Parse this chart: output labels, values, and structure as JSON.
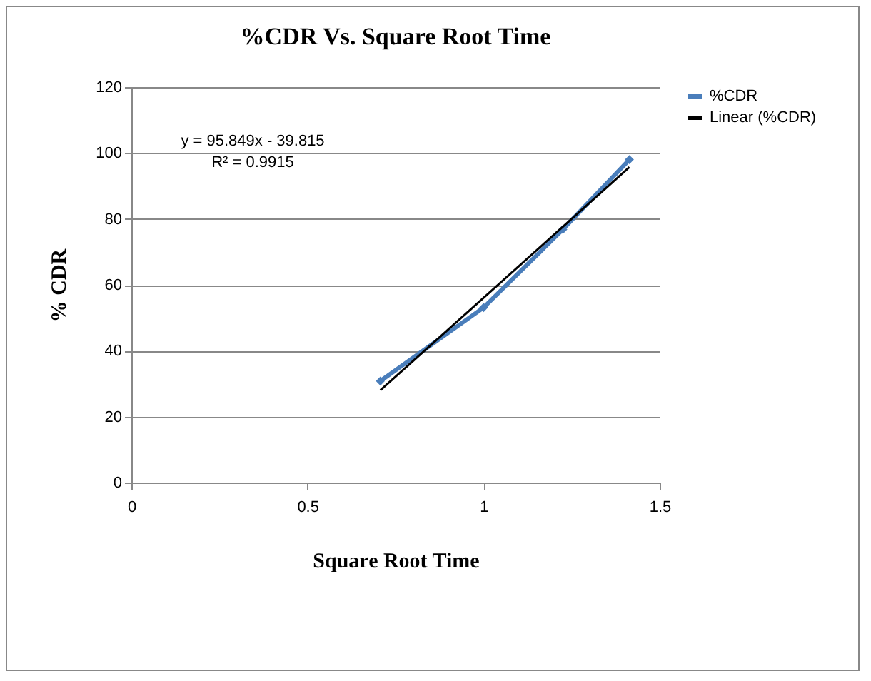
{
  "chart_data": {
    "type": "line",
    "title": "%CDR Vs. Square Root Time",
    "xlabel": "Square Root Time",
    "ylabel": "% CDR",
    "series": [
      {
        "name": "%CDR",
        "color": "#4a7ebb",
        "x": [
          0.707,
          1,
          1.225,
          1.414
        ],
        "values": [
          30.8,
          53.1,
          76.8,
          98
        ],
        "marker": "diamond"
      },
      {
        "name": "Linear (%CDR)",
        "type": "line",
        "color": "#000000",
        "x": [
          0.707,
          1.414
        ],
        "values": [
          28,
          95.7
        ]
      }
    ],
    "annotations": [
      "y = 95.849x - 39.815",
      "R² = 0.9915"
    ],
    "xlim": [
      0,
      1.5
    ],
    "xticks": [
      0,
      0.5,
      1,
      1.5
    ],
    "ylim": [
      0,
      120
    ],
    "yticks": [
      0,
      20,
      40,
      60,
      80,
      100,
      120
    ],
    "grid": "y",
    "legend": "right",
    "line_style": "solid"
  }
}
